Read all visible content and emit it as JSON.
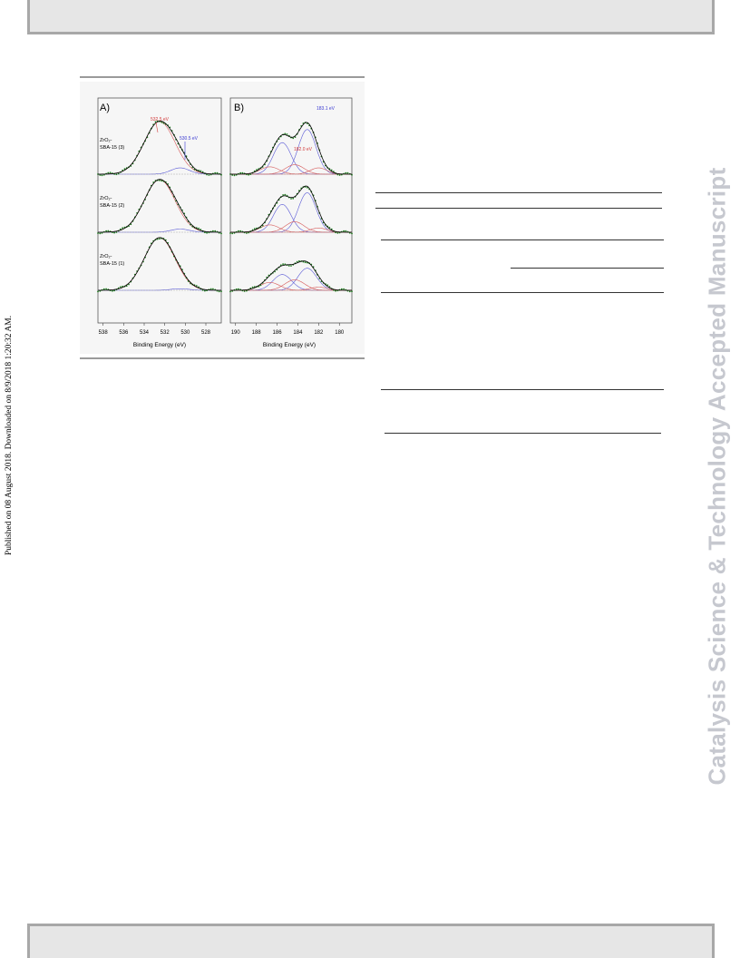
{
  "page": {
    "side_note": "Published on 08 August 2018. Downloaded on 8/9/2018 1:20:32 AM.",
    "watermark": "Catalysis Science & Technology Accepted Manuscript"
  },
  "figure": {
    "panel_a_label": "A)",
    "panel_b_label": "B)",
    "sample_labels": [
      [
        "ZrO₂-",
        "SBA-15 (3)"
      ],
      [
        "ZrO₂-",
        "SBA-15 (2)"
      ],
      [
        "ZrO₂-",
        "SBA-15 (1)"
      ]
    ],
    "panel_a_annotations": [
      {
        "text": "532.5 eV",
        "color": "#d23a3a"
      },
      {
        "text": "530.5 eV",
        "color": "#3a3ad2"
      }
    ],
    "panel_b_annotations": [
      {
        "text": "183.1 eV",
        "color": "#3a3ad2"
      },
      {
        "text": "182.0 eV",
        "color": "#d23a3a"
      }
    ],
    "colors": {
      "data": "#1f7a1f",
      "fit": "#000000",
      "component_blue": "#5a5ad6",
      "component_red": "#d65a5a"
    },
    "chart_data": [
      {
        "type": "line",
        "panel": "A)",
        "xlabel": "Binding Energy (eV)",
        "xticks": [
          538,
          536,
          534,
          532,
          530,
          528
        ],
        "xlim": [
          538.5,
          526.5
        ],
        "reversed_x": true,
        "series": [
          {
            "name": "ZrO₂-SBA-15 (3)",
            "peaks": [
              {
                "center": 532.5,
                "height": 1.0,
                "width": 1.5
              },
              {
                "center": 530.5,
                "height": 0.12,
                "width": 0.9
              }
            ]
          },
          {
            "name": "ZrO₂-SBA-15 (2)",
            "peaks": [
              {
                "center": 532.5,
                "height": 1.0,
                "width": 1.5
              },
              {
                "center": 530.5,
                "height": 0.06,
                "width": 0.9
              }
            ]
          },
          {
            "name": "ZrO₂-SBA-15 (1)",
            "peaks": [
              {
                "center": 532.5,
                "height": 1.0,
                "width": 1.5
              },
              {
                "center": 530.5,
                "height": 0.03,
                "width": 0.9
              }
            ]
          }
        ]
      },
      {
        "type": "line",
        "panel": "B)",
        "xlabel": "Binding Energy (eV)",
        "xticks": [
          190,
          188,
          186,
          184,
          182,
          180
        ],
        "xlim": [
          190.5,
          178.8
        ],
        "reversed_x": true,
        "series": [
          {
            "name": "ZrO₂-SBA-15 (3)",
            "peaks": [
              {
                "center": 183.1,
                "height": 0.85,
                "width": 0.85,
                "c": "blue"
              },
              {
                "center": 185.5,
                "height": 0.6,
                "width": 0.85,
                "c": "blue"
              },
              {
                "center": 184.3,
                "height": 0.18,
                "width": 0.9,
                "c": "red"
              },
              {
                "center": 186.7,
                "height": 0.14,
                "width": 0.9,
                "c": "red"
              },
              {
                "center": 182.0,
                "height": 0.12,
                "width": 0.8,
                "c": "red"
              }
            ]
          },
          {
            "name": "ZrO₂-SBA-15 (2)",
            "peaks": [
              {
                "center": 183.1,
                "height": 0.75,
                "width": 0.85,
                "c": "blue"
              },
              {
                "center": 185.5,
                "height": 0.53,
                "width": 0.85,
                "c": "blue"
              },
              {
                "center": 184.3,
                "height": 0.2,
                "width": 0.9,
                "c": "red"
              },
              {
                "center": 186.7,
                "height": 0.14,
                "width": 0.9,
                "c": "red"
              },
              {
                "center": 182.0,
                "height": 0.08,
                "width": 0.8,
                "c": "red"
              }
            ]
          },
          {
            "name": "ZrO₂-SBA-15 (1)",
            "peaks": [
              {
                "center": 183.1,
                "height": 0.42,
                "width": 0.9,
                "c": "blue"
              },
              {
                "center": 185.5,
                "height": 0.3,
                "width": 0.9,
                "c": "blue"
              },
              {
                "center": 184.3,
                "height": 0.2,
                "width": 0.95,
                "c": "red"
              },
              {
                "center": 186.7,
                "height": 0.15,
                "width": 0.95,
                "c": "red"
              },
              {
                "center": 182.0,
                "height": 0.06,
                "width": 0.8,
                "c": "red"
              }
            ]
          }
        ]
      }
    ]
  }
}
